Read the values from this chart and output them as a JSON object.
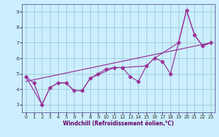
{
  "xlabel": "Windchill (Refroidissement éolien,°C)",
  "bg_color": "#cceeff",
  "grid_color": "#99cccc",
  "line_color": "#993399",
  "xlim": [
    -0.5,
    23.5
  ],
  "ylim": [
    2.5,
    9.5
  ],
  "yticks": [
    3,
    4,
    5,
    6,
    7,
    8,
    9
  ],
  "xticks": [
    0,
    1,
    2,
    3,
    4,
    5,
    6,
    7,
    8,
    9,
    10,
    11,
    12,
    13,
    14,
    15,
    16,
    17,
    18,
    19,
    20,
    21,
    22,
    23
  ],
  "series1_x": [
    0,
    1,
    2,
    3,
    4,
    5,
    6,
    7,
    8,
    9,
    10,
    11,
    12,
    13,
    14,
    15,
    16,
    17,
    18,
    19,
    20,
    21,
    22,
    23
  ],
  "series1_y": [
    4.8,
    4.4,
    3.0,
    4.1,
    4.4,
    4.4,
    3.9,
    3.9,
    4.7,
    5.0,
    5.3,
    5.4,
    5.4,
    4.8,
    4.5,
    5.5,
    6.0,
    5.8,
    5.0,
    7.0,
    9.1,
    7.5,
    6.8,
    7.0
  ],
  "series2_x": [
    0,
    2,
    3,
    4,
    5,
    6,
    7,
    8,
    11,
    12,
    15,
    16,
    19,
    20,
    21,
    22,
    23
  ],
  "series2_y": [
    4.8,
    3.0,
    4.1,
    4.4,
    4.4,
    3.9,
    3.9,
    4.7,
    5.4,
    5.4,
    5.5,
    6.0,
    7.0,
    9.1,
    7.5,
    6.8,
    7.0
  ],
  "trend_x": [
    0,
    23
  ],
  "trend_y": [
    4.5,
    7.0
  ],
  "spine_color": "#666699",
  "label_color": "#660066",
  "tick_color": "#333333",
  "xlabel_fontsize": 5.5,
  "tick_fontsize": 5,
  "marker_size": 2.5,
  "linewidth": 0.9
}
